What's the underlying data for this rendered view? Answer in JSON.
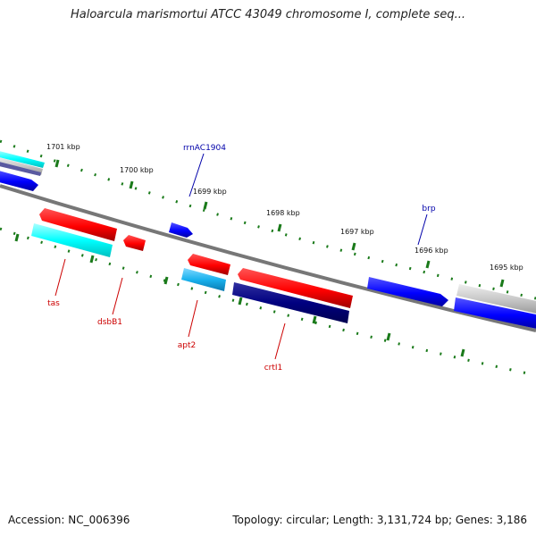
{
  "title": "Haloarcula marismortui ATCC 43049 chromosome I, complete seq...",
  "footer": {
    "accession": "Accession: NC_006396",
    "topology": "Topology: circular; Length: 3,131,724 bp; Genes: 3,186"
  },
  "scale_labels": [
    "1701 kbp",
    "1700 kbp",
    "1699 kbp",
    "1698 kbp",
    "1697 kbp",
    "1696 kbp",
    "1695 kbp"
  ],
  "gene_labels": [
    {
      "text": "rrnAC1904",
      "color": "#0000aa"
    },
    {
      "text": "brp",
      "color": "#0000aa"
    },
    {
      "text": "tas",
      "color": "#cc0000"
    },
    {
      "text": "dsbB1",
      "color": "#cc0000"
    },
    {
      "text": "apt2",
      "color": "#cc0000"
    },
    {
      "text": "crtI1",
      "color": "#cc0000"
    }
  ],
  "colors": {
    "backbone": "#808080",
    "tick": "#1a7a1a",
    "forward_gene": "#0000ff",
    "reverse_gene": "#ff0000",
    "cyan_feature": "#00ffff",
    "light_blue_feature": "#1ab2ee",
    "navy_feature": "#000080",
    "gray_feature": "#bbbbbb"
  }
}
